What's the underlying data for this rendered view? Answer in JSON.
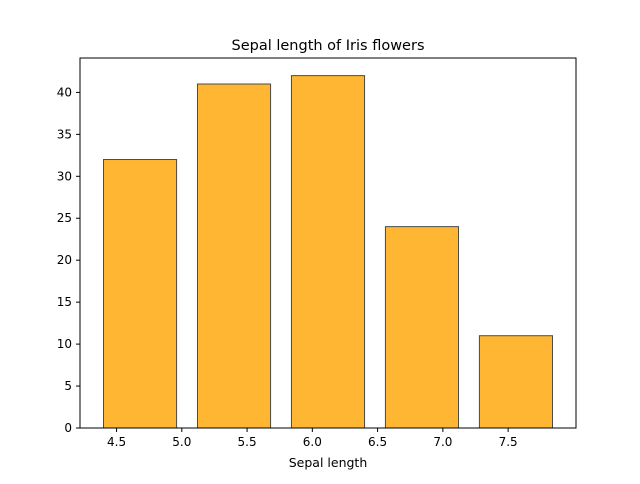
{
  "chart_data": {
    "type": "bar",
    "title": "Sepal length of Iris flowers",
    "xlabel": "Sepal length",
    "ylabel": "",
    "bar_color": "#ffb733",
    "bar_edge_color": "#4a4a4a",
    "bins": [
      {
        "start": 4.4,
        "end": 4.96,
        "value": 32
      },
      {
        "start": 5.12,
        "end": 5.68,
        "value": 41
      },
      {
        "start": 5.84,
        "end": 6.4,
        "value": 42
      },
      {
        "start": 6.56,
        "end": 7.12,
        "value": 24
      },
      {
        "start": 7.28,
        "end": 7.84,
        "value": 11
      }
    ],
    "values": [
      32,
      41,
      42,
      24,
      11
    ],
    "xlim": [
      4.22,
      8.02
    ],
    "ylim": [
      0,
      44.1
    ],
    "x_ticks": [
      "4.5",
      "5.0",
      "5.5",
      "6.0",
      "6.5",
      "7.0",
      "7.5"
    ],
    "x_tick_values": [
      4.5,
      5.0,
      5.5,
      6.0,
      6.5,
      7.0,
      7.5
    ],
    "y_ticks": [
      "0",
      "5",
      "10",
      "15",
      "20",
      "25",
      "30",
      "35",
      "40"
    ],
    "y_tick_values": [
      0,
      5,
      10,
      15,
      20,
      25,
      30,
      35,
      40
    ],
    "grid": false,
    "legend": "none"
  }
}
